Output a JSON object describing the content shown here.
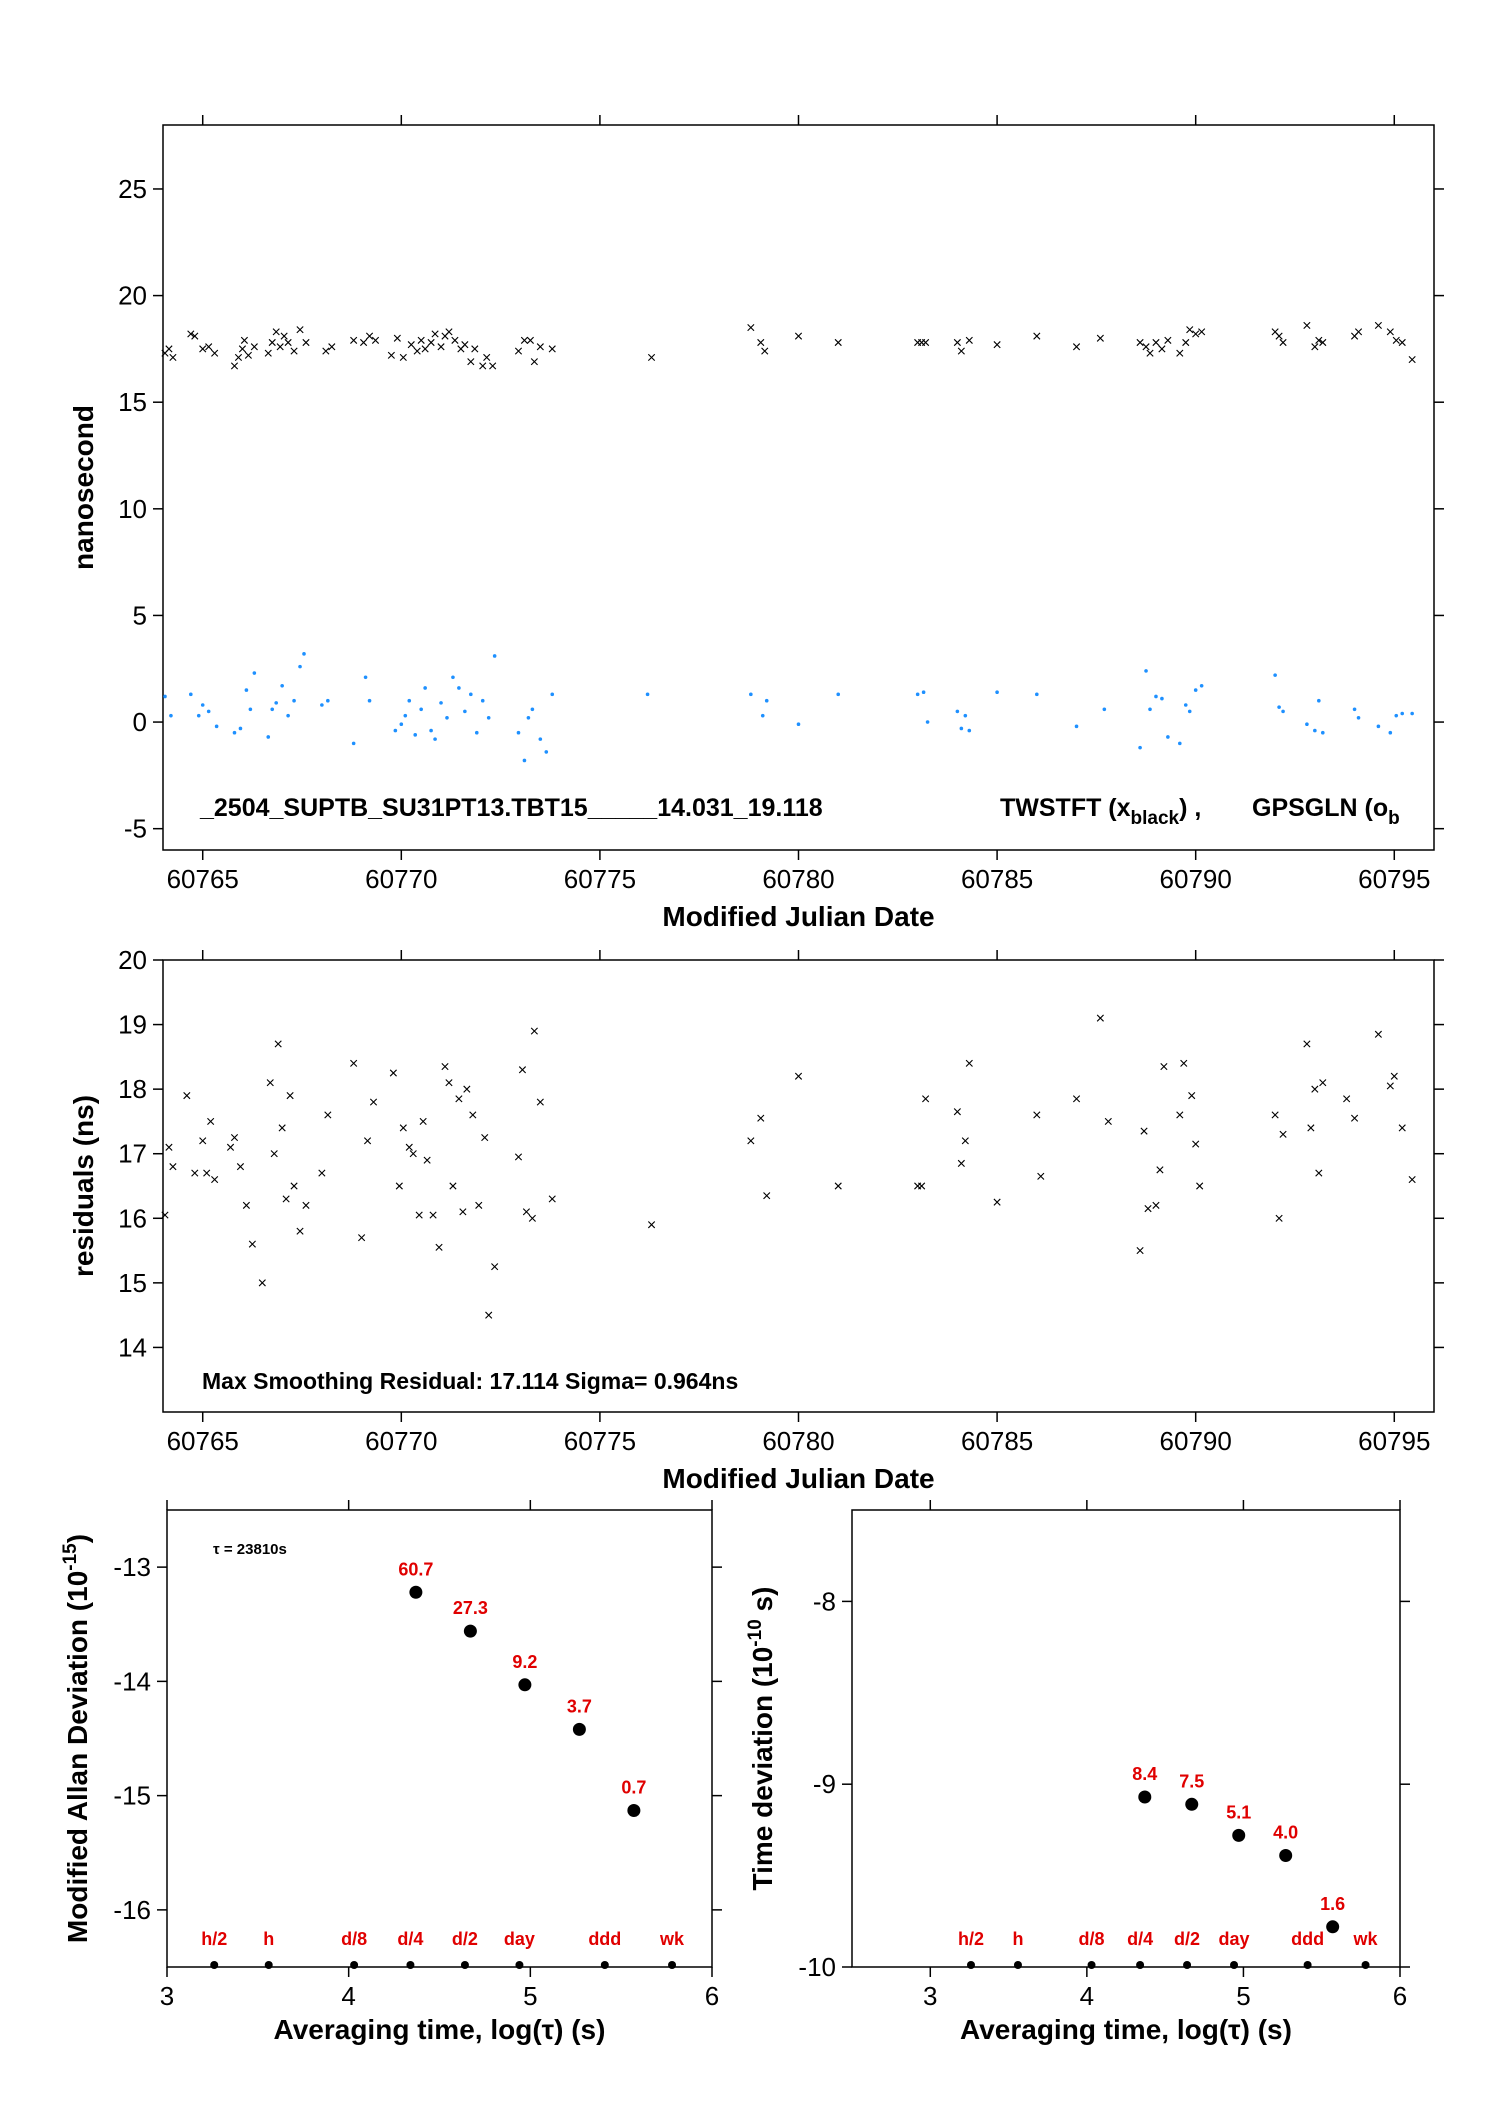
{
  "colors": {
    "black": "#000000",
    "blue": "#1e90ff",
    "red": "#e00000"
  },
  "chart_data": [
    {
      "type": "scatter",
      "xlabel": "Modified Julian Date",
      "ylabel": "nanosecond",
      "xlim": [
        60764,
        60796
      ],
      "ylim": [
        -6,
        28
      ],
      "xticks": [
        60765,
        60770,
        60775,
        60780,
        60785,
        60790,
        60795
      ],
      "yticks": [
        -5,
        0,
        5,
        10,
        15,
        20,
        25
      ],
      "annotation_text": "_2504_SUPTB_SU31PT13.TBT15_____14.031_19.118",
      "legend_a_text": "TWSTFT (x",
      "legend_a_sub": "black",
      "legend_a_after": ") ,",
      "legend_b_text": "GPSGLN (o",
      "legend_b_sub": "b",
      "series": [
        {
          "name": "TWSTFT",
          "marker": "x",
          "color": "#000000",
          "x": [
            60764.05,
            60764.15,
            60764.25,
            60764.7,
            60764.8,
            60765.0,
            60765.15,
            60765.3,
            60765.8,
            60765.9,
            60766.0,
            60766.05,
            60766.15,
            60766.3,
            60766.65,
            60766.75,
            60766.85,
            60766.95,
            60767.05,
            60767.15,
            60767.3,
            60767.45,
            60767.6,
            60768.1,
            60768.25,
            60768.8,
            60769.05,
            60769.2,
            60769.35,
            60769.75,
            60769.9,
            60770.05,
            60770.25,
            60770.4,
            60770.5,
            60770.6,
            60770.75,
            60770.85,
            60771.0,
            60771.1,
            60771.2,
            60771.35,
            60771.5,
            60771.6,
            60771.75,
            60771.85,
            60772.05,
            60772.15,
            60772.3,
            60772.95,
            60773.1,
            60773.25,
            60773.35,
            60773.5,
            60773.8,
            60776.3,
            60778.8,
            60779.05,
            60779.15,
            60780.0,
            60781.0,
            60783.0,
            60783.1,
            60783.2,
            60784.0,
            60784.1,
            60784.3,
            60785.0,
            60786.0,
            60787.0,
            60787.6,
            60788.6,
            60788.75,
            60788.85,
            60789.0,
            60789.15,
            60789.3,
            60789.6,
            60789.75,
            60789.85,
            60790.0,
            60790.15,
            60792.0,
            60792.1,
            60792.2,
            60792.8,
            60793.0,
            60793.1,
            60793.2,
            60794.0,
            60794.1,
            60794.6,
            60794.9,
            60795.05,
            60795.2,
            60795.45
          ],
          "y": [
            17.3,
            17.5,
            17.1,
            18.2,
            18.1,
            17.5,
            17.6,
            17.3,
            16.7,
            17.1,
            17.5,
            17.9,
            17.2,
            17.6,
            17.3,
            17.8,
            18.3,
            17.6,
            18.1,
            17.8,
            17.4,
            18.4,
            17.8,
            17.4,
            17.6,
            17.9,
            17.8,
            18.1,
            17.9,
            17.2,
            18.0,
            17.1,
            17.7,
            17.4,
            17.9,
            17.5,
            17.8,
            18.2,
            17.6,
            18.1,
            18.3,
            17.9,
            17.5,
            17.7,
            16.9,
            17.5,
            16.7,
            17.1,
            16.7,
            17.4,
            17.9,
            17.9,
            16.9,
            17.6,
            17.5,
            17.1,
            18.5,
            17.8,
            17.4,
            18.1,
            17.8,
            17.8,
            17.8,
            17.8,
            17.8,
            17.4,
            17.9,
            17.7,
            18.1,
            17.6,
            18.0,
            17.8,
            17.6,
            17.3,
            17.8,
            17.5,
            17.9,
            17.3,
            17.8,
            18.4,
            18.2,
            18.3,
            18.3,
            18.1,
            17.8,
            18.6,
            17.6,
            17.9,
            17.8,
            18.1,
            18.3,
            18.6,
            18.3,
            17.9,
            17.8,
            17.0
          ]
        },
        {
          "name": "GPSGLN",
          "marker": "dot",
          "color": "#1e90ff",
          "x": [
            60764.05,
            60764.2,
            60764.7,
            60764.9,
            60765.0,
            60765.15,
            60765.35,
            60765.8,
            60765.95,
            60766.1,
            60766.2,
            60766.3,
            60766.65,
            60766.75,
            60766.85,
            60767.0,
            60767.15,
            60767.3,
            60767.45,
            60767.55,
            60768.0,
            60768.15,
            60768.8,
            60769.1,
            60769.2,
            60769.85,
            60770.0,
            60770.1,
            60770.2,
            60770.35,
            60770.5,
            60770.6,
            60770.75,
            60770.85,
            60771.0,
            60771.15,
            60771.3,
            60771.45,
            60771.6,
            60771.75,
            60771.9,
            60772.05,
            60772.2,
            60772.35,
            60772.95,
            60773.1,
            60773.2,
            60773.3,
            60773.5,
            60773.65,
            60773.8,
            60776.2,
            60778.8,
            60779.1,
            60779.2,
            60780.0,
            60781.0,
            60783.0,
            60783.15,
            60783.25,
            60784.0,
            60784.1,
            60784.2,
            60784.3,
            60785.0,
            60786.0,
            60787.0,
            60787.7,
            60788.6,
            60788.75,
            60788.85,
            60789.0,
            60789.15,
            60789.3,
            60789.6,
            60789.75,
            60789.85,
            60790.0,
            60790.15,
            60792.0,
            60792.1,
            60792.2,
            60792.8,
            60793.0,
            60793.1,
            60793.2,
            60794.0,
            60794.1,
            60794.6,
            60794.9,
            60795.05,
            60795.2,
            60795.45
          ],
          "y": [
            1.2,
            0.3,
            1.3,
            0.3,
            0.8,
            0.5,
            -0.2,
            -0.5,
            -0.3,
            1.5,
            0.6,
            2.3,
            -0.7,
            0.6,
            0.9,
            1.7,
            0.3,
            1.0,
            2.6,
            3.2,
            0.8,
            1.0,
            -1.0,
            2.1,
            1.0,
            -0.4,
            -0.1,
            0.3,
            1.0,
            -0.6,
            0.6,
            1.6,
            -0.4,
            -0.8,
            0.9,
            0.2,
            2.1,
            1.6,
            0.5,
            1.3,
            -0.5,
            1.0,
            0.2,
            3.1,
            -0.5,
            -1.8,
            0.2,
            0.6,
            -0.8,
            -1.4,
            1.3,
            1.3,
            1.3,
            0.3,
            1.0,
            -0.1,
            1.3,
            1.3,
            1.4,
            0.0,
            0.5,
            -0.3,
            0.3,
            -0.4,
            1.4,
            1.3,
            -0.2,
            0.6,
            -1.2,
            2.4,
            0.6,
            1.2,
            1.1,
            -0.7,
            -1.0,
            0.8,
            0.5,
            1.5,
            1.7,
            2.2,
            0.7,
            0.5,
            -0.1,
            -0.4,
            1.0,
            -0.5,
            0.6,
            0.2,
            -0.2,
            -0.5,
            0.3,
            0.4,
            0.4
          ]
        }
      ]
    },
    {
      "type": "scatter",
      "xlabel": "Modified Julian Date",
      "ylabel": "residuals (ns)",
      "xlim": [
        60764,
        60796
      ],
      "ylim": [
        13,
        20
      ],
      "xticks": [
        60765,
        60770,
        60775,
        60780,
        60785,
        60790,
        60795
      ],
      "yticks": [
        14,
        15,
        16,
        17,
        18,
        19,
        20
      ],
      "annotation_text": "Max Smoothing Residual: 17.114  Sigma= 0.964ns",
      "series": [
        {
          "marker": "x",
          "x": [
            60764.05,
            60764.15,
            60764.25,
            60764.6,
            60764.8,
            60765.0,
            60765.1,
            60765.2,
            60765.3,
            60765.7,
            60765.8,
            60765.95,
            60766.1,
            60766.25,
            60766.5,
            60766.7,
            60766.8,
            60766.9,
            60767.0,
            60767.1,
            60767.2,
            60767.3,
            60767.45,
            60767.6,
            60768.0,
            60768.15,
            60768.8,
            60769.0,
            60769.15,
            60769.3,
            60769.8,
            60769.95,
            60770.05,
            60770.2,
            60770.3,
            60770.45,
            60770.55,
            60770.65,
            60770.8,
            60770.95,
            60771.1,
            60771.2,
            60771.3,
            60771.45,
            60771.55,
            60771.65,
            60771.8,
            60771.95,
            60772.1,
            60772.2,
            60772.35,
            60772.95,
            60773.05,
            60773.15,
            60773.3,
            60773.35,
            60773.5,
            60773.8,
            60776.3,
            60778.8,
            60779.05,
            60779.2,
            60780.0,
            60781.0,
            60783.0,
            60783.1,
            60783.2,
            60784.0,
            60784.1,
            60784.2,
            60784.3,
            60785.0,
            60786.0,
            60786.1,
            60787.0,
            60787.6,
            60787.8,
            60788.6,
            60788.7,
            60788.8,
            60789.0,
            60789.1,
            60789.2,
            60789.6,
            60789.7,
            60789.9,
            60790.0,
            60790.1,
            60792.0,
            60792.1,
            60792.2,
            60792.8,
            60792.9,
            60793.0,
            60793.1,
            60793.2,
            60793.8,
            60794.0,
            60794.6,
            60794.9,
            60795.0,
            60795.2,
            60795.45
          ],
          "y": [
            16.05,
            17.1,
            16.8,
            17.9,
            16.7,
            17.2,
            16.7,
            17.5,
            16.6,
            17.1,
            17.25,
            16.8,
            16.2,
            15.6,
            15.0,
            18.1,
            17.0,
            18.7,
            17.4,
            16.3,
            17.9,
            16.5,
            15.8,
            16.2,
            16.7,
            17.6,
            18.4,
            15.7,
            17.2,
            17.8,
            18.25,
            16.5,
            17.4,
            17.1,
            17.0,
            16.05,
            17.5,
            16.9,
            16.05,
            15.55,
            18.35,
            18.1,
            16.5,
            17.85,
            16.1,
            18.0,
            17.6,
            16.2,
            17.25,
            14.5,
            15.25,
            16.95,
            18.3,
            16.1,
            16.0,
            18.9,
            17.8,
            16.3,
            15.9,
            17.2,
            17.55,
            16.35,
            18.2,
            16.5,
            16.5,
            16.5,
            17.85,
            17.65,
            16.85,
            17.2,
            18.4,
            16.25,
            17.6,
            16.65,
            17.85,
            19.1,
            17.5,
            15.5,
            17.35,
            16.15,
            16.2,
            16.75,
            18.35,
            17.6,
            18.4,
            17.9,
            17.15,
            16.5,
            17.6,
            16.0,
            17.3,
            18.7,
            17.4,
            18.0,
            16.7,
            18.1,
            17.85,
            17.55,
            18.85,
            18.05,
            18.2,
            17.4,
            16.6
          ]
        }
      ]
    },
    {
      "type": "scatter",
      "xlabel": "Averaging time, log(τ) (s)",
      "ylabel": "Modified Allan Deviation (10",
      "ylabel_sup": "-15",
      "ylabel_tail": ")",
      "xlim": [
        3,
        6
      ],
      "ylim": [
        -16.5,
        -12.5
      ],
      "xticks": [
        3,
        4,
        5,
        6
      ],
      "yticks": [
        -16,
        -15,
        -14,
        -13
      ],
      "tau_label": "τ = 23810s",
      "points": {
        "x": [
          4.37,
          4.67,
          4.97,
          5.27,
          5.57
        ],
        "y": [
          -13.22,
          -13.56,
          -14.03,
          -14.42,
          -15.13
        ],
        "labels": [
          "60.7",
          "27.3",
          "9.2",
          "3.7",
          "0.7"
        ]
      },
      "markers": {
        "labels": [
          "h/2",
          "h",
          "d/8",
          "d/4",
          "d/2",
          "day",
          "ddd",
          "wk"
        ],
        "x": [
          3.26,
          3.56,
          4.03,
          4.34,
          4.64,
          4.94,
          5.41,
          5.78
        ],
        "y": -16.5
      }
    },
    {
      "type": "scatter",
      "xlabel": "Averaging time, log(τ) (s)",
      "ylabel": "Time deviation (10",
      "ylabel_sup": "-10",
      "ylabel_tail": " s)",
      "xlim": [
        2.5,
        6
      ],
      "ylim": [
        -10,
        -7.5
      ],
      "xticks": [
        3,
        4,
        5,
        6
      ],
      "yticks": [
        -10,
        -9,
        -8
      ],
      "points": {
        "x": [
          4.37,
          4.67,
          4.97,
          5.27,
          5.57
        ],
        "y": [
          -9.07,
          -9.11,
          -9.28,
          -9.39,
          -9.78
        ],
        "labels": [
          "8.4",
          "7.5",
          "5.1",
          "4.0",
          "1.6"
        ]
      },
      "markers": {
        "labels": [
          "h/2",
          "h",
          "d/8",
          "d/4",
          "d/2",
          "day",
          "ddd",
          "wk"
        ],
        "x": [
          3.26,
          3.56,
          4.03,
          4.34,
          4.64,
          4.94,
          5.41,
          5.78
        ],
        "y": -10
      }
    }
  ]
}
